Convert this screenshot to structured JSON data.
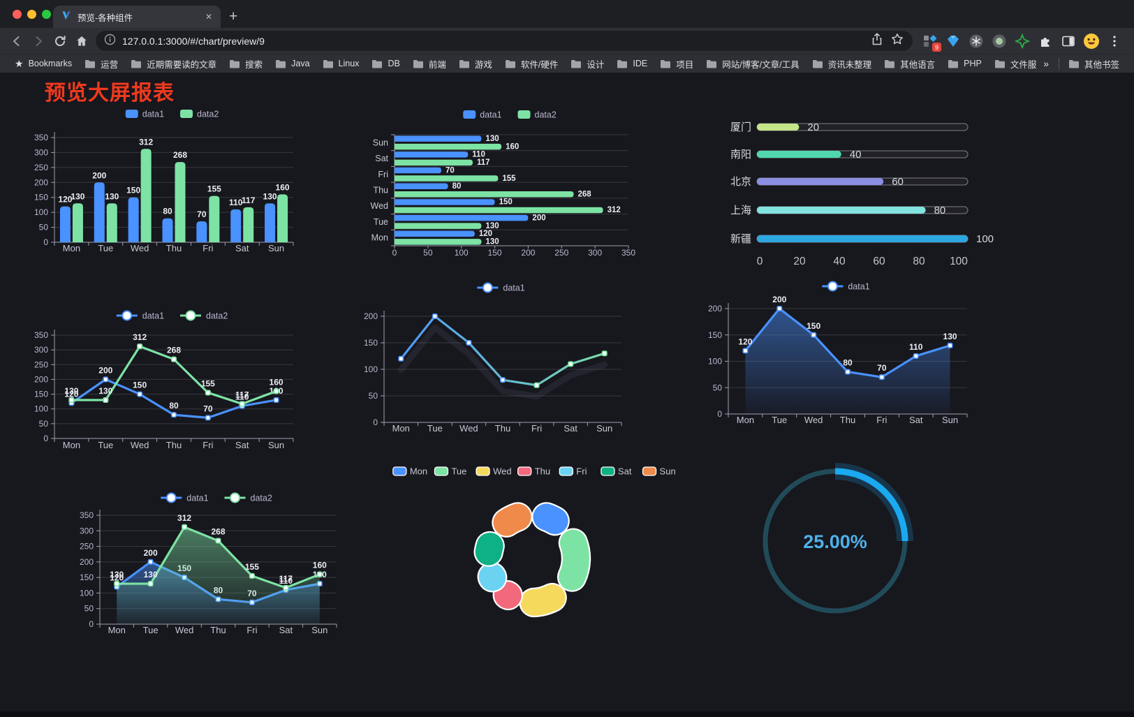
{
  "browser": {
    "tab": {
      "title": "预览-各种组件",
      "close_glyph": "✕",
      "new_tab_glyph": "+"
    },
    "url": "127.0.0.1:3000/#/chart/preview/9",
    "extensions_badge": "9",
    "bookmarks_bar": {
      "star_label": "Bookmarks",
      "folders": [
        "运营",
        "近期需要读的文章",
        "搜索",
        "Java",
        "Linux",
        "DB",
        "前端",
        "游戏",
        "软件/硬件",
        "设计",
        "IDE",
        "项目",
        "网站/博客/文章/工具",
        "资讯未整理",
        "其他语言",
        "PHP",
        "文件服务器"
      ],
      "overflow_glyph": "»",
      "other_label": "其他书签"
    }
  },
  "page": {
    "title": "预览大屏报表"
  },
  "chart_data": [
    {
      "id": "bar-grouped",
      "type": "bar",
      "categories": [
        "Mon",
        "Tue",
        "Wed",
        "Thu",
        "Fri",
        "Sat",
        "Sun"
      ],
      "series": [
        {
          "name": "data1",
          "color": "#4992ff",
          "values": [
            120,
            200,
            150,
            80,
            70,
            110,
            130
          ]
        },
        {
          "name": "data2",
          "color": "#7de3a4",
          "values": [
            130,
            130,
            312,
            268,
            155,
            117,
            160
          ]
        }
      ],
      "ylim": [
        0,
        350
      ],
      "ystep": 50,
      "legend_position": "top",
      "grid": true,
      "value_labels": true
    },
    {
      "id": "bar-horizontal",
      "type": "bar",
      "orientation": "horizontal",
      "categories": [
        "Mon",
        "Tue",
        "Wed",
        "Thu",
        "Fri",
        "Sat",
        "Sun"
      ],
      "display_order_top_to_bottom": [
        "Sun",
        "Sat",
        "Fri",
        "Thu",
        "Wed",
        "Tue",
        "Mon"
      ],
      "series": [
        {
          "name": "data1",
          "color": "#4992ff",
          "values": [
            120,
            200,
            150,
            80,
            70,
            110,
            130
          ]
        },
        {
          "name": "data2",
          "color": "#7de3a4",
          "values": [
            130,
            130,
            312,
            268,
            155,
            117,
            160
          ]
        }
      ],
      "xlim": [
        0,
        350
      ],
      "xstep": 50,
      "legend_position": "top",
      "value_labels": true
    },
    {
      "id": "progress-bars",
      "type": "bar",
      "style": "progress-pill",
      "rows": [
        {
          "label": "厦门",
          "value": 20,
          "color": "#c4e587"
        },
        {
          "label": "南阳",
          "value": 40,
          "color": "#4fd6ad"
        },
        {
          "label": "北京",
          "value": 60,
          "color": "#8a8fe4"
        },
        {
          "label": "上海",
          "value": 80,
          "color": "#82e2df"
        },
        {
          "label": "新疆",
          "value": 100,
          "color": "#2da7e0"
        }
      ],
      "xlim": [
        0,
        100
      ],
      "xticks": [
        0,
        20,
        40,
        60,
        80,
        100
      ],
      "value_labels": true
    },
    {
      "id": "line-two-series",
      "type": "line",
      "categories": [
        "Mon",
        "Tue",
        "Wed",
        "Thu",
        "Fri",
        "Sat",
        "Sun"
      ],
      "series": [
        {
          "name": "data1",
          "color": "#4992ff",
          "values": [
            120,
            200,
            150,
            80,
            70,
            110,
            130
          ]
        },
        {
          "name": "data2",
          "color": "#7de3a4",
          "values": [
            130,
            130,
            312,
            268,
            155,
            117,
            160
          ]
        }
      ],
      "ylim": [
        0,
        350
      ],
      "ystep": 50,
      "legend_position": "top",
      "value_labels": true
    },
    {
      "id": "line-gradient",
      "type": "line",
      "categories": [
        "Mon",
        "Tue",
        "Wed",
        "Thu",
        "Fri",
        "Sat",
        "Sun"
      ],
      "series": [
        {
          "name": "data1",
          "color": "#4992ff",
          "color_gradient": [
            "#4992ff",
            "#7de3a4"
          ],
          "values": [
            120,
            200,
            150,
            80,
            70,
            110,
            130
          ]
        }
      ],
      "ylim": [
        0,
        200
      ],
      "ystep": 50,
      "legend_position": "top",
      "value_labels": false
    },
    {
      "id": "line-area",
      "type": "line",
      "categories": [
        "Mon",
        "Tue",
        "Wed",
        "Thu",
        "Fri",
        "Sat",
        "Sun"
      ],
      "series": [
        {
          "name": "data1",
          "color": "#4992ff",
          "area": true,
          "values": [
            120,
            200,
            150,
            80,
            70,
            110,
            130
          ]
        }
      ],
      "ylim": [
        0,
        200
      ],
      "ystep": 50,
      "legend_position": "top",
      "value_labels": true
    },
    {
      "id": "line-area-two",
      "type": "line",
      "categories": [
        "Mon",
        "Tue",
        "Wed",
        "Thu",
        "Fri",
        "Sat",
        "Sun"
      ],
      "series": [
        {
          "name": "data1",
          "color": "#4992ff",
          "area": true,
          "values": [
            120,
            200,
            150,
            80,
            70,
            110,
            130
          ]
        },
        {
          "name": "data2",
          "color": "#7de3a4",
          "area": true,
          "values": [
            130,
            130,
            312,
            268,
            155,
            117,
            160
          ]
        }
      ],
      "ylim": [
        0,
        350
      ],
      "ystep": 50,
      "legend_position": "top",
      "value_labels": true
    },
    {
      "id": "donut",
      "type": "pie",
      "legend_position": "top",
      "items": [
        {
          "label": "Mon",
          "value": 120,
          "color": "#4992ff"
        },
        {
          "label": "Tue",
          "value": 200,
          "color": "#7de3a4"
        },
        {
          "label": "Wed",
          "value": 150,
          "color": "#f5d95c"
        },
        {
          "label": "Thu",
          "value": 80,
          "color": "#f2697c"
        },
        {
          "label": "Fri",
          "value": 70,
          "color": "#6cd2f2"
        },
        {
          "label": "Sat",
          "value": 110,
          "color": "#0eb086"
        },
        {
          "label": "Sun",
          "value": 130,
          "color": "#f08a4a"
        }
      ]
    },
    {
      "id": "gauge",
      "type": "gauge",
      "value": 25,
      "display": "25.00%",
      "color": "#1ba9f0",
      "track_color": "#214b59",
      "text_color": "#4fb1e8"
    }
  ]
}
